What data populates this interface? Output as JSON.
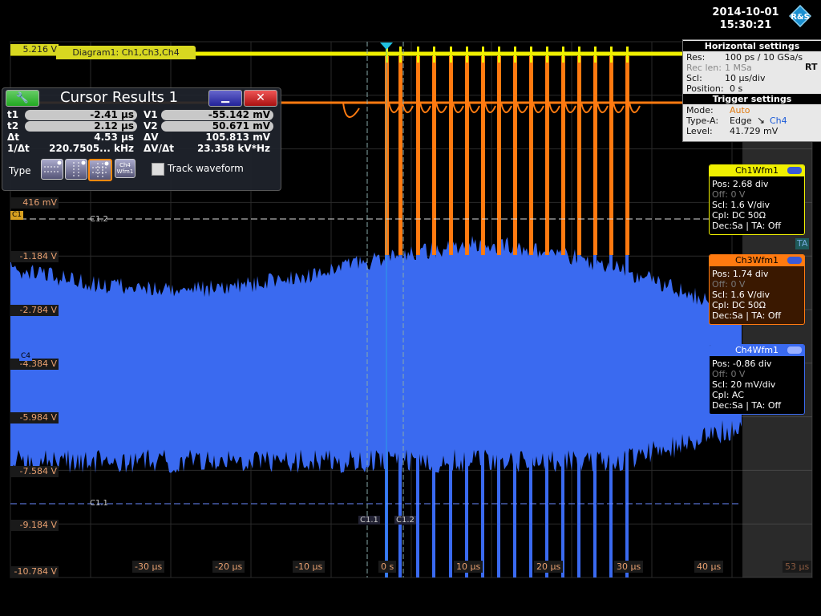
{
  "datetime": {
    "date": "2014-10-01",
    "time": "15:30:21"
  },
  "diagram": {
    "title": "Diagram1: Ch1,Ch3,Ch4"
  },
  "volt_labels": {
    "top": "5.216 V",
    "l416": "416 mV",
    "l1184": "-1.184 V",
    "l2784": "-2.784 V",
    "l4384": "-4.384 V",
    "l5984": "-5.984 V",
    "l7584": "-7.584 V",
    "l9184": "-9.184 V",
    "l10784": "-10.784 V"
  },
  "time_labels": [
    "-30 µs",
    "-20 µs",
    "-10 µs",
    "0 s",
    "10 µs",
    "20 µs",
    "30 µs",
    "40 µs",
    "53 µs"
  ],
  "cursor_labels": {
    "c12": "C1.2",
    "c11": "C1.1",
    "ct1": "C1.1",
    "ct2": "C1.2"
  },
  "channel_tags": {
    "c1": "C1",
    "c4": "C4",
    "ta": "TA"
  },
  "cursor_results": {
    "title": "Cursor Results 1",
    "t1_key": "t1",
    "t1_val": "-2.41 µs",
    "t2_key": "t2",
    "t2_val": "2.12 µs",
    "dt_key": "Δt",
    "dt_val": "4.53 µs",
    "inv_key": "1/Δt",
    "inv_val": "220.7505... kHz",
    "v1_key": "V1",
    "v1_val": "-55.142 mV",
    "v2_key": "V2",
    "v2_val": "50.671 mV",
    "dv_key": "ΔV",
    "dv_val": "105.813 mV",
    "dvdt_key": "ΔV/Δt",
    "dvdt_val": "23.358 kV*Hz",
    "type_label": "Type",
    "track_label": "Track waveform",
    "wfm_button": "Ch4 Wfm1"
  },
  "horizontal": {
    "heading": "Horizontal settings",
    "res_k": "Res:",
    "res_v": "100 ps / 10 GSa/s",
    "rec_k": "Rec len:",
    "rec_v": "1 MSa",
    "scl_k": "Scl:",
    "scl_v": "10 µs/div",
    "pos_k": "Position:",
    "pos_v": "0 s",
    "rt": "RT"
  },
  "trigger": {
    "heading": "Trigger settings",
    "mode_k": "Mode:",
    "mode_v": "Auto",
    "type_k": "Type-A:",
    "type_v": "Edge",
    "type_ch": "Ch4",
    "level_k": "Level:",
    "level_v": "41.729 mV"
  },
  "ch1": {
    "title": "Ch1Wfm1",
    "pos": "Pos: 2.68 div",
    "off": "Off: 0 V",
    "scl": "Scl: 1.6 V/div",
    "cpl": "Cpl: DC 50Ω",
    "dec": "Dec:Sa | TA: Off"
  },
  "ch3": {
    "title": "Ch3Wfm1",
    "pos": "Pos: 1.74 div",
    "off": "Off: 0 V",
    "scl": "Scl: 1.6 V/div",
    "cpl": "Cpl: DC 50Ω",
    "dec": "Dec:Sa | TA: Off"
  },
  "ch4": {
    "title": "Ch4Wfm1",
    "pos": "Pos: -0.86 div",
    "off": "Off: 0 V",
    "scl": "Scl: 20 mV/div",
    "cpl": "Cpl: AC",
    "dec": "Dec:Sa | TA: Off"
  },
  "colors": {
    "ch1": "#f0f000",
    "ch3": "#ff7a10",
    "ch4": "#3a6af0"
  }
}
